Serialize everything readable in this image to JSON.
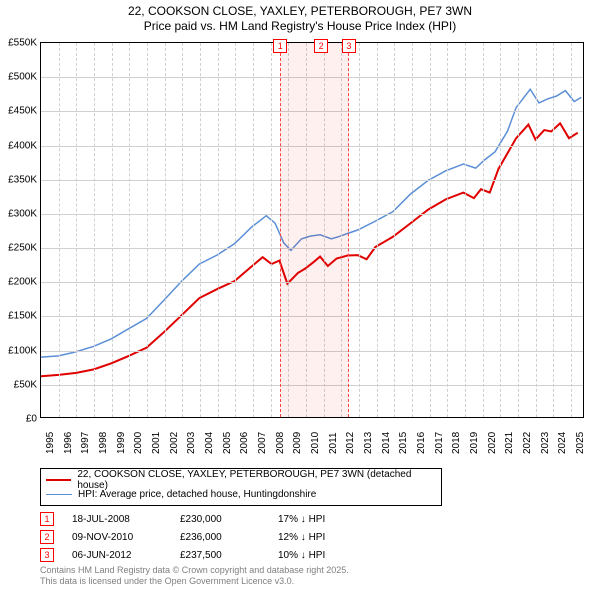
{
  "title": {
    "line1": "22, COOKSON CLOSE, YAXLEY, PETERBOROUGH, PE7 3WN",
    "line2": "Price paid vs. HM Land Registry's House Price Index (HPI)",
    "fontsize": 12
  },
  "chart": {
    "type": "line",
    "background_color": "#ffffff",
    "grid_color": "#d0d0d0",
    "border_color": "#000000",
    "xmin": 1995,
    "xmax": 2025.8,
    "ymin": 0,
    "ymax": 550,
    "yticks": [
      0,
      50,
      100,
      150,
      200,
      250,
      300,
      350,
      400,
      450,
      500,
      550
    ],
    "ytick_labels": [
      "£0",
      "£50K",
      "£100K",
      "£150K",
      "£200K",
      "£250K",
      "£300K",
      "£350K",
      "£400K",
      "£450K",
      "£500K",
      "£550K"
    ],
    "xticks": [
      1995,
      1996,
      1997,
      1998,
      1999,
      2000,
      2001,
      2002,
      2003,
      2004,
      2005,
      2006,
      2007,
      2008,
      2009,
      2010,
      2011,
      2012,
      2013,
      2014,
      2015,
      2016,
      2017,
      2018,
      2019,
      2020,
      2021,
      2022,
      2023,
      2024,
      2025
    ],
    "shaded": {
      "from": 2008.55,
      "to": 2012.43,
      "fill": "rgba(255,0,0,0.06)",
      "border": "#ff4040"
    },
    "markers": [
      {
        "n": "1",
        "x": 2008.55
      },
      {
        "n": "2",
        "x": 2010.86
      },
      {
        "n": "3",
        "x": 2012.43
      }
    ],
    "series": [
      {
        "name": "property",
        "color": "#e00000",
        "width": 2,
        "points": [
          [
            1995,
            60
          ],
          [
            1996,
            62
          ],
          [
            1997,
            65
          ],
          [
            1998,
            70
          ],
          [
            1999,
            79
          ],
          [
            2000,
            90
          ],
          [
            2001,
            102
          ],
          [
            2002,
            125
          ],
          [
            2003,
            150
          ],
          [
            2004,
            175
          ],
          [
            2005,
            188
          ],
          [
            2006,
            200
          ],
          [
            2007,
            222
          ],
          [
            2007.6,
            235
          ],
          [
            2008.1,
            225
          ],
          [
            2008.55,
            230
          ],
          [
            2009,
            196
          ],
          [
            2009.6,
            212
          ],
          [
            2010,
            218
          ],
          [
            2010.5,
            228
          ],
          [
            2010.86,
            236
          ],
          [
            2011.3,
            222
          ],
          [
            2011.8,
            233
          ],
          [
            2012.43,
            237.5
          ],
          [
            2013,
            238
          ],
          [
            2013.5,
            232
          ],
          [
            2014,
            250
          ],
          [
            2015,
            265
          ],
          [
            2016,
            285
          ],
          [
            2017,
            305
          ],
          [
            2018,
            320
          ],
          [
            2019,
            330
          ],
          [
            2019.6,
            322
          ],
          [
            2020,
            335
          ],
          [
            2020.5,
            330
          ],
          [
            2021,
            365
          ],
          [
            2022,
            410
          ],
          [
            2022.7,
            430
          ],
          [
            2023.1,
            408
          ],
          [
            2023.6,
            422
          ],
          [
            2024,
            420
          ],
          [
            2024.5,
            432
          ],
          [
            2025,
            410
          ],
          [
            2025.5,
            418
          ]
        ]
      },
      {
        "name": "hpi",
        "color": "#5b8fd6",
        "width": 1.5,
        "points": [
          [
            1995,
            88
          ],
          [
            1996,
            90
          ],
          [
            1997,
            96
          ],
          [
            1998,
            104
          ],
          [
            1999,
            115
          ],
          [
            2000,
            130
          ],
          [
            2001,
            145
          ],
          [
            2002,
            172
          ],
          [
            2003,
            200
          ],
          [
            2004,
            225
          ],
          [
            2005,
            238
          ],
          [
            2006,
            255
          ],
          [
            2007,
            280
          ],
          [
            2007.8,
            296
          ],
          [
            2008.3,
            285
          ],
          [
            2008.8,
            256
          ],
          [
            2009.2,
            245
          ],
          [
            2009.8,
            262
          ],
          [
            2010.3,
            266
          ],
          [
            2010.86,
            268
          ],
          [
            2011.5,
            262
          ],
          [
            2012,
            266
          ],
          [
            2012.43,
            270
          ],
          [
            2013,
            275
          ],
          [
            2014,
            288
          ],
          [
            2015,
            302
          ],
          [
            2016,
            328
          ],
          [
            2017,
            348
          ],
          [
            2018,
            362
          ],
          [
            2019,
            372
          ],
          [
            2019.7,
            366
          ],
          [
            2020.2,
            378
          ],
          [
            2020.8,
            390
          ],
          [
            2021.5,
            420
          ],
          [
            2022,
            455
          ],
          [
            2022.8,
            482
          ],
          [
            2023.3,
            462
          ],
          [
            2023.8,
            468
          ],
          [
            2024.3,
            472
          ],
          [
            2024.8,
            480
          ],
          [
            2025.3,
            464
          ],
          [
            2025.7,
            470
          ]
        ]
      }
    ]
  },
  "legend": {
    "entries": [
      {
        "color": "#e00000",
        "width": 2,
        "label": "22, COOKSON CLOSE, YAXLEY, PETERBOROUGH, PE7 3WN (detached house)"
      },
      {
        "color": "#5b8fd6",
        "width": 1.5,
        "label": "HPI: Average price, detached house, Huntingdonshire"
      }
    ]
  },
  "transactions": [
    {
      "n": "1",
      "date": "18-JUL-2008",
      "price": "£230,000",
      "hpi": "17% ↓ HPI"
    },
    {
      "n": "2",
      "date": "09-NOV-2010",
      "price": "£236,000",
      "hpi": "12% ↓ HPI"
    },
    {
      "n": "3",
      "date": "06-JUN-2012",
      "price": "£237,500",
      "hpi": "10% ↓ HPI"
    }
  ],
  "footer": {
    "line1": "Contains HM Land Registry data © Crown copyright and database right 2025.",
    "line2": "This data is licensed under the Open Government Licence v3.0.",
    "color": "#808080"
  }
}
